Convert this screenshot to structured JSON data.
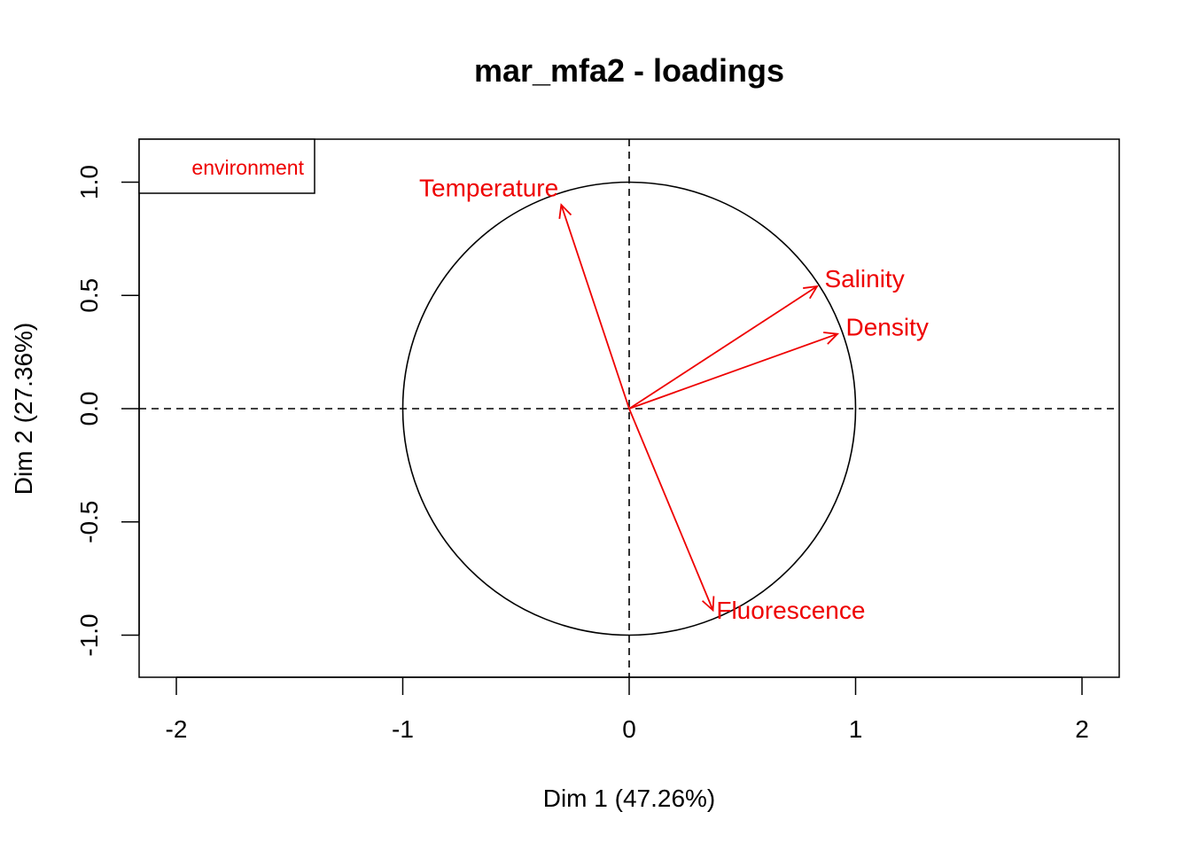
{
  "chart_data": {
    "type": "scatter",
    "subtype": "correlation-circle",
    "title": "mar_mfa2 - loadings",
    "xlabel": "Dim 1 (47.26%)",
    "ylabel": "Dim 2 (27.36%)",
    "xlim": [
      -2.15,
      2.15
    ],
    "ylim": [
      -1.18,
      1.2
    ],
    "x_ticks": [
      -2,
      -1,
      0,
      1,
      2
    ],
    "x_tick_labels": [
      "-2",
      "-1",
      "0",
      "1",
      "2"
    ],
    "y_ticks": [
      -1.0,
      -0.5,
      0.0,
      0.5,
      1.0
    ],
    "y_tick_labels": [
      "-1.0",
      "-0.5",
      "0.0",
      "0.5",
      "1.0"
    ],
    "reference_lines": {
      "x": 0,
      "y": 0,
      "style": "dashed"
    },
    "unit_circle": true,
    "legend": {
      "entries": [
        "environment"
      ],
      "placement": "top-left",
      "color": "#ee0000"
    },
    "series": [
      {
        "name": "environment",
        "color": "#ee0000",
        "vectors": [
          {
            "label": "Temperature",
            "x": -0.3,
            "y": 0.9
          },
          {
            "label": "Salinity",
            "x": 0.83,
            "y": 0.54
          },
          {
            "label": "Density",
            "x": 0.92,
            "y": 0.33
          },
          {
            "label": "Fluorescence",
            "x": 0.37,
            "y": -0.89
          }
        ]
      }
    ]
  }
}
